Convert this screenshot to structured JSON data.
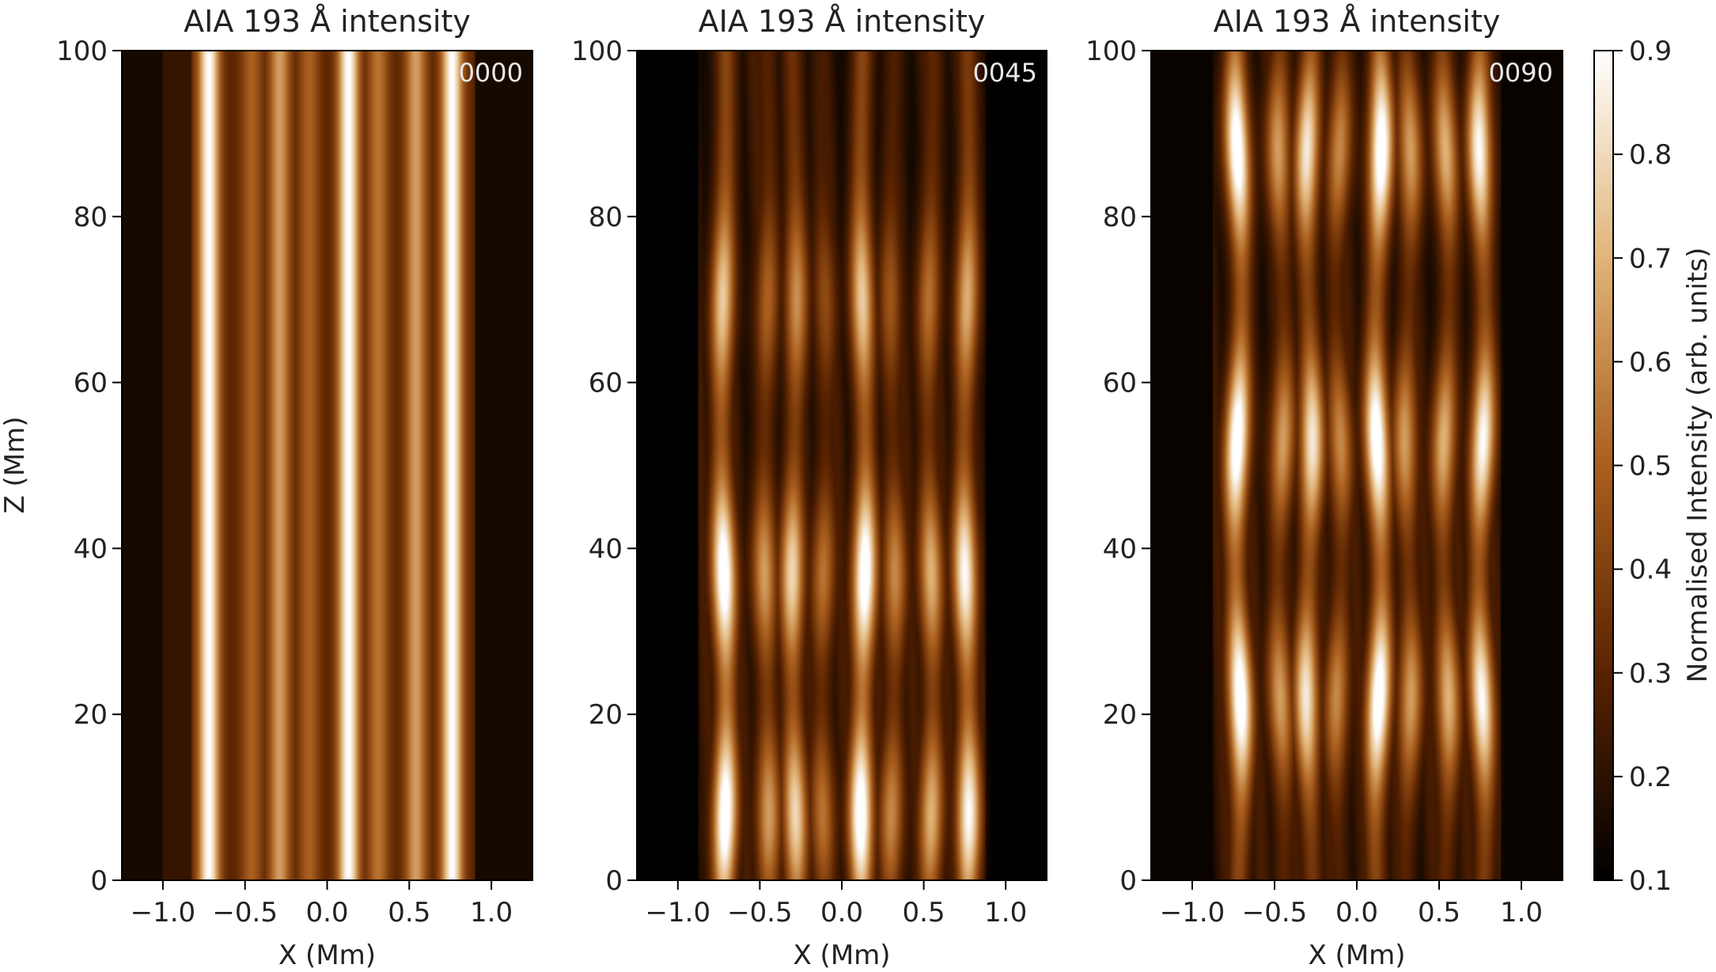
{
  "chart_data": [
    {
      "type": "heatmap",
      "title": "AIA 193 Å intensity",
      "frame_label": "0000",
      "xlabel": "X (Mm)",
      "ylabel": "Z (Mm)",
      "xlim": [
        -1.25,
        1.25
      ],
      "ylim": [
        0,
        100
      ],
      "xticks": [
        "−1.0",
        "−0.5",
        "0.0",
        "0.5",
        "1.0"
      ],
      "xtick_values": [
        -1.0,
        -0.5,
        0.0,
        0.5,
        1.0
      ],
      "yticks": [
        "0",
        "20",
        "40",
        "60",
        "80",
        "100"
      ],
      "ytick_values": [
        0,
        20,
        40,
        60,
        80,
        100
      ],
      "background": 0.15,
      "strands": [
        {
          "x": -0.92,
          "peak": 0.22
        },
        {
          "x": -0.72,
          "peak": 0.9
        },
        {
          "x": -0.46,
          "peak": 0.5
        },
        {
          "x": -0.29,
          "peak": 0.65
        },
        {
          "x": -0.11,
          "peak": 0.5
        },
        {
          "x": 0.13,
          "peak": 0.9
        },
        {
          "x": 0.31,
          "peak": 0.55
        },
        {
          "x": 0.54,
          "peak": 0.65
        },
        {
          "x": 0.76,
          "peak": 0.9
        }
      ],
      "bright_z": []
    },
    {
      "type": "heatmap",
      "title": "AIA 193 Å intensity",
      "frame_label": "0045",
      "xlabel": "X (Mm)",
      "ylabel": "",
      "xlim": [
        -1.25,
        1.25
      ],
      "ylim": [
        0,
        100
      ],
      "xticks": [
        "−1.0",
        "−0.5",
        "0.0",
        "0.5",
        "1.0"
      ],
      "xtick_values": [
        -1.0,
        -0.5,
        0.0,
        0.5,
        1.0
      ],
      "yticks": [
        "0",
        "20",
        "40",
        "60",
        "80",
        "100"
      ],
      "ytick_values": [
        0,
        20,
        40,
        60,
        80,
        100
      ],
      "background": 0.1,
      "strands": [
        {
          "x": -0.72,
          "peak": 0.9
        },
        {
          "x": -0.46,
          "peak": 0.55
        },
        {
          "x": -0.29,
          "peak": 0.7
        },
        {
          "x": -0.11,
          "peak": 0.45
        },
        {
          "x": 0.13,
          "peak": 0.9
        },
        {
          "x": 0.31,
          "peak": 0.5
        },
        {
          "x": 0.54,
          "peak": 0.6
        },
        {
          "x": 0.76,
          "peak": 0.8
        }
      ],
      "bright_z": [
        8,
        37,
        70
      ]
    },
    {
      "type": "heatmap",
      "title": "AIA 193 Å intensity",
      "frame_label": "0090",
      "xlabel": "X (Mm)",
      "ylabel": "",
      "xlim": [
        -1.25,
        1.25
      ],
      "ylim": [
        0,
        100
      ],
      "xticks": [
        "−1.0",
        "−0.5",
        "0.0",
        "0.5",
        "1.0"
      ],
      "xtick_values": [
        -1.0,
        -0.5,
        0.0,
        0.5,
        1.0
      ],
      "yticks": [
        "0",
        "20",
        "40",
        "60",
        "80",
        "100"
      ],
      "ytick_values": [
        0,
        20,
        40,
        60,
        80,
        100
      ],
      "background": 0.12,
      "strands": [
        {
          "x": -0.72,
          "peak": 0.9
        },
        {
          "x": -0.46,
          "peak": 0.55
        },
        {
          "x": -0.29,
          "peak": 0.75
        },
        {
          "x": -0.11,
          "peak": 0.5
        },
        {
          "x": 0.13,
          "peak": 0.9
        },
        {
          "x": 0.31,
          "peak": 0.55
        },
        {
          "x": 0.54,
          "peak": 0.6
        },
        {
          "x": 0.76,
          "peak": 0.8
        }
      ],
      "bright_z": [
        22,
        53,
        88
      ]
    }
  ],
  "colorbar": {
    "label": "Normalised Intensity (arb. units)",
    "clim": [
      0.1,
      0.9
    ],
    "ticks": [
      "0.1",
      "0.2",
      "0.3",
      "0.4",
      "0.5",
      "0.6",
      "0.7",
      "0.8",
      "0.9"
    ],
    "tick_values": [
      0.1,
      0.2,
      0.3,
      0.4,
      0.5,
      0.6,
      0.7,
      0.8,
      0.9
    ],
    "colormap": "sdoaia193",
    "colormap_stops": [
      "#000000",
      "#5a2300",
      "#aa5f1e",
      "#e1b478",
      "#ffffff"
    ]
  }
}
